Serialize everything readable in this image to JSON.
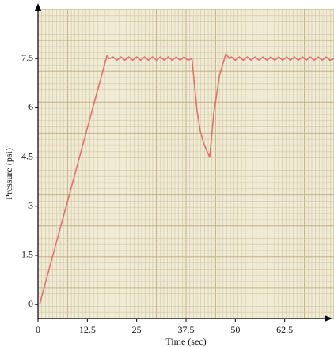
{
  "chart_data": {
    "type": "line",
    "x_label": "Time (sec)",
    "y_label": "Pressure (psi)",
    "x": [
      0.4,
      3,
      6,
      9,
      12,
      15,
      17.5,
      18,
      19,
      20,
      21,
      22,
      23,
      24,
      25,
      26,
      27,
      28,
      29,
      30,
      31,
      32,
      33,
      34,
      35,
      36,
      37,
      38,
      39,
      40.3,
      41.1,
      42,
      43.5,
      44.5,
      46,
      47.6,
      48.5,
      49,
      50,
      51,
      52,
      53,
      54,
      55,
      56,
      57,
      58,
      59,
      60,
      61,
      62,
      63,
      64,
      65,
      66,
      67,
      68,
      69,
      70,
      71,
      72,
      73,
      74,
      75
    ],
    "series": [
      {
        "color": "#e07070",
        "values": [
          0,
          1.16,
          2.49,
          3.82,
          5.16,
          6.49,
          7.6,
          7.5,
          7.55,
          7.45,
          7.55,
          7.45,
          7.55,
          7.45,
          7.55,
          7.45,
          7.55,
          7.45,
          7.55,
          7.45,
          7.55,
          7.45,
          7.55,
          7.45,
          7.55,
          7.45,
          7.55,
          7.45,
          7.5,
          5.9,
          5.3,
          4.9,
          4.5,
          5.8,
          7.0,
          7.65,
          7.5,
          7.55,
          7.45,
          7.55,
          7.45,
          7.55,
          7.45,
          7.55,
          7.45,
          7.55,
          7.45,
          7.55,
          7.45,
          7.55,
          7.45,
          7.55,
          7.45,
          7.55,
          7.45,
          7.55,
          7.45,
          7.55,
          7.45,
          7.55,
          7.45,
          7.55,
          7.45,
          7.5
        ]
      }
    ],
    "xlim": [
      0,
      75
    ],
    "xticks": [
      0,
      12.5,
      25,
      37.5,
      50,
      62.5
    ],
    "ylim": [
      -0.43,
      9
    ],
    "yticks": [
      0,
      1.5,
      3,
      4.5,
      6,
      7.5
    ]
  }
}
